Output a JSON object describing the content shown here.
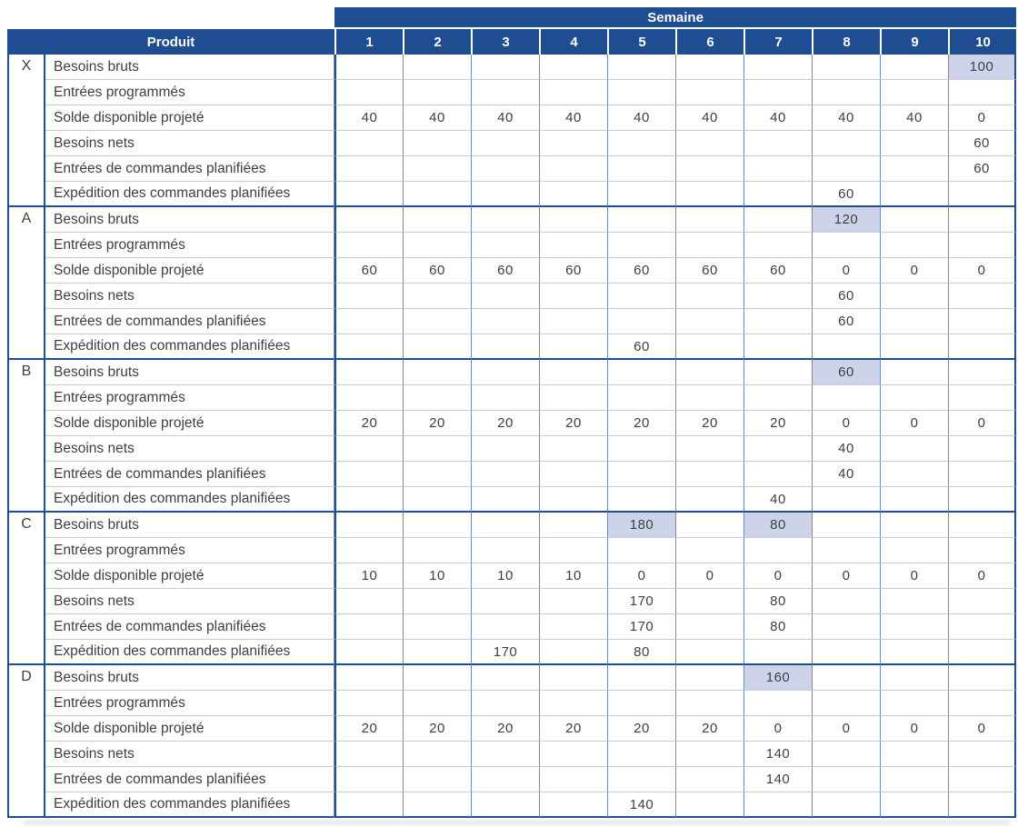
{
  "table": {
    "semaine_label": "Semaine",
    "produit_label": "Produit",
    "weeks": [
      "1",
      "2",
      "3",
      "4",
      "5",
      "6",
      "7",
      "8",
      "9",
      "10"
    ],
    "row_labels": [
      "Besoins bruts",
      "Entrées programmés",
      "Solde disponible projeté",
      "Besoins nets",
      "Entrées de commandes planifiées",
      "Expédition des commandes planifiées"
    ],
    "products": [
      {
        "code": "X",
        "rows": [
          {
            "values": [
              "",
              "",
              "",
              "",
              "",
              "",
              "",
              "",
              "",
              "100"
            ],
            "highlights": [
              10
            ]
          },
          {
            "values": [
              "",
              "",
              "",
              "",
              "",
              "",
              "",
              "",
              "",
              ""
            ],
            "highlights": []
          },
          {
            "values": [
              "40",
              "40",
              "40",
              "40",
              "40",
              "40",
              "40",
              "40",
              "40",
              "0"
            ],
            "highlights": []
          },
          {
            "values": [
              "",
              "",
              "",
              "",
              "",
              "",
              "",
              "",
              "",
              "60"
            ],
            "highlights": []
          },
          {
            "values": [
              "",
              "",
              "",
              "",
              "",
              "",
              "",
              "",
              "",
              "60"
            ],
            "highlights": []
          },
          {
            "values": [
              "",
              "",
              "",
              "",
              "",
              "",
              "",
              "60",
              "",
              ""
            ],
            "highlights": []
          }
        ]
      },
      {
        "code": "A",
        "rows": [
          {
            "values": [
              "",
              "",
              "",
              "",
              "",
              "",
              "",
              "120",
              "",
              ""
            ],
            "highlights": [
              8
            ]
          },
          {
            "values": [
              "",
              "",
              "",
              "",
              "",
              "",
              "",
              "",
              "",
              ""
            ],
            "highlights": []
          },
          {
            "values": [
              "60",
              "60",
              "60",
              "60",
              "60",
              "60",
              "60",
              "0",
              "0",
              "0"
            ],
            "highlights": []
          },
          {
            "values": [
              "",
              "",
              "",
              "",
              "",
              "",
              "",
              "60",
              "",
              ""
            ],
            "highlights": []
          },
          {
            "values": [
              "",
              "",
              "",
              "",
              "",
              "",
              "",
              "60",
              "",
              ""
            ],
            "highlights": []
          },
          {
            "values": [
              "",
              "",
              "",
              "",
              "60",
              "",
              "",
              "",
              "",
              ""
            ],
            "highlights": []
          }
        ]
      },
      {
        "code": "B",
        "rows": [
          {
            "values": [
              "",
              "",
              "",
              "",
              "",
              "",
              "",
              "60",
              "",
              ""
            ],
            "highlights": [
              8
            ]
          },
          {
            "values": [
              "",
              "",
              "",
              "",
              "",
              "",
              "",
              "",
              "",
              ""
            ],
            "highlights": []
          },
          {
            "values": [
              "20",
              "20",
              "20",
              "20",
              "20",
              "20",
              "20",
              "0",
              "0",
              "0"
            ],
            "highlights": []
          },
          {
            "values": [
              "",
              "",
              "",
              "",
              "",
              "",
              "",
              "40",
              "",
              ""
            ],
            "highlights": []
          },
          {
            "values": [
              "",
              "",
              "",
              "",
              "",
              "",
              "",
              "40",
              "",
              ""
            ],
            "highlights": []
          },
          {
            "values": [
              "",
              "",
              "",
              "",
              "",
              "",
              "40",
              "",
              "",
              ""
            ],
            "highlights": []
          }
        ]
      },
      {
        "code": "C",
        "rows": [
          {
            "values": [
              "",
              "",
              "",
              "",
              "180",
              "",
              "80",
              "",
              "",
              ""
            ],
            "highlights": [
              5,
              7
            ]
          },
          {
            "values": [
              "",
              "",
              "",
              "",
              "",
              "",
              "",
              "",
              "",
              ""
            ],
            "highlights": []
          },
          {
            "values": [
              "10",
              "10",
              "10",
              "10",
              "0",
              "0",
              "0",
              "0",
              "0",
              "0"
            ],
            "highlights": []
          },
          {
            "values": [
              "",
              "",
              "",
              "",
              "170",
              "",
              "80",
              "",
              "",
              ""
            ],
            "highlights": []
          },
          {
            "values": [
              "",
              "",
              "",
              "",
              "170",
              "",
              "80",
              "",
              "",
              ""
            ],
            "highlights": []
          },
          {
            "values": [
              "",
              "",
              "170",
              "",
              "80",
              "",
              "",
              "",
              "",
              ""
            ],
            "highlights": []
          }
        ]
      },
      {
        "code": "D",
        "rows": [
          {
            "values": [
              "",
              "",
              "",
              "",
              "",
              "",
              "160",
              "",
              "",
              ""
            ],
            "highlights": [
              7
            ]
          },
          {
            "values": [
              "",
              "",
              "",
              "",
              "",
              "",
              "",
              "",
              "",
              ""
            ],
            "highlights": []
          },
          {
            "values": [
              "20",
              "20",
              "20",
              "20",
              "20",
              "20",
              "0",
              "0",
              "0",
              "0"
            ],
            "highlights": []
          },
          {
            "values": [
              "",
              "",
              "",
              "",
              "",
              "",
              "140",
              "",
              "",
              ""
            ],
            "highlights": []
          },
          {
            "values": [
              "",
              "",
              "",
              "",
              "",
              "",
              "140",
              "",
              "",
              ""
            ],
            "highlights": []
          },
          {
            "values": [
              "",
              "",
              "",
              "",
              "140",
              "",
              "",
              "",
              "",
              ""
            ],
            "highlights": []
          }
        ]
      }
    ]
  },
  "colors": {
    "header_blue": "#1e4d92",
    "dark_border": "#1e4d92",
    "highlight": "#ced3e9",
    "grid_light": "#c2cee4",
    "grid_mid": "#7189bd",
    "text": "#3c4146",
    "shadow": "#dde1e9"
  }
}
